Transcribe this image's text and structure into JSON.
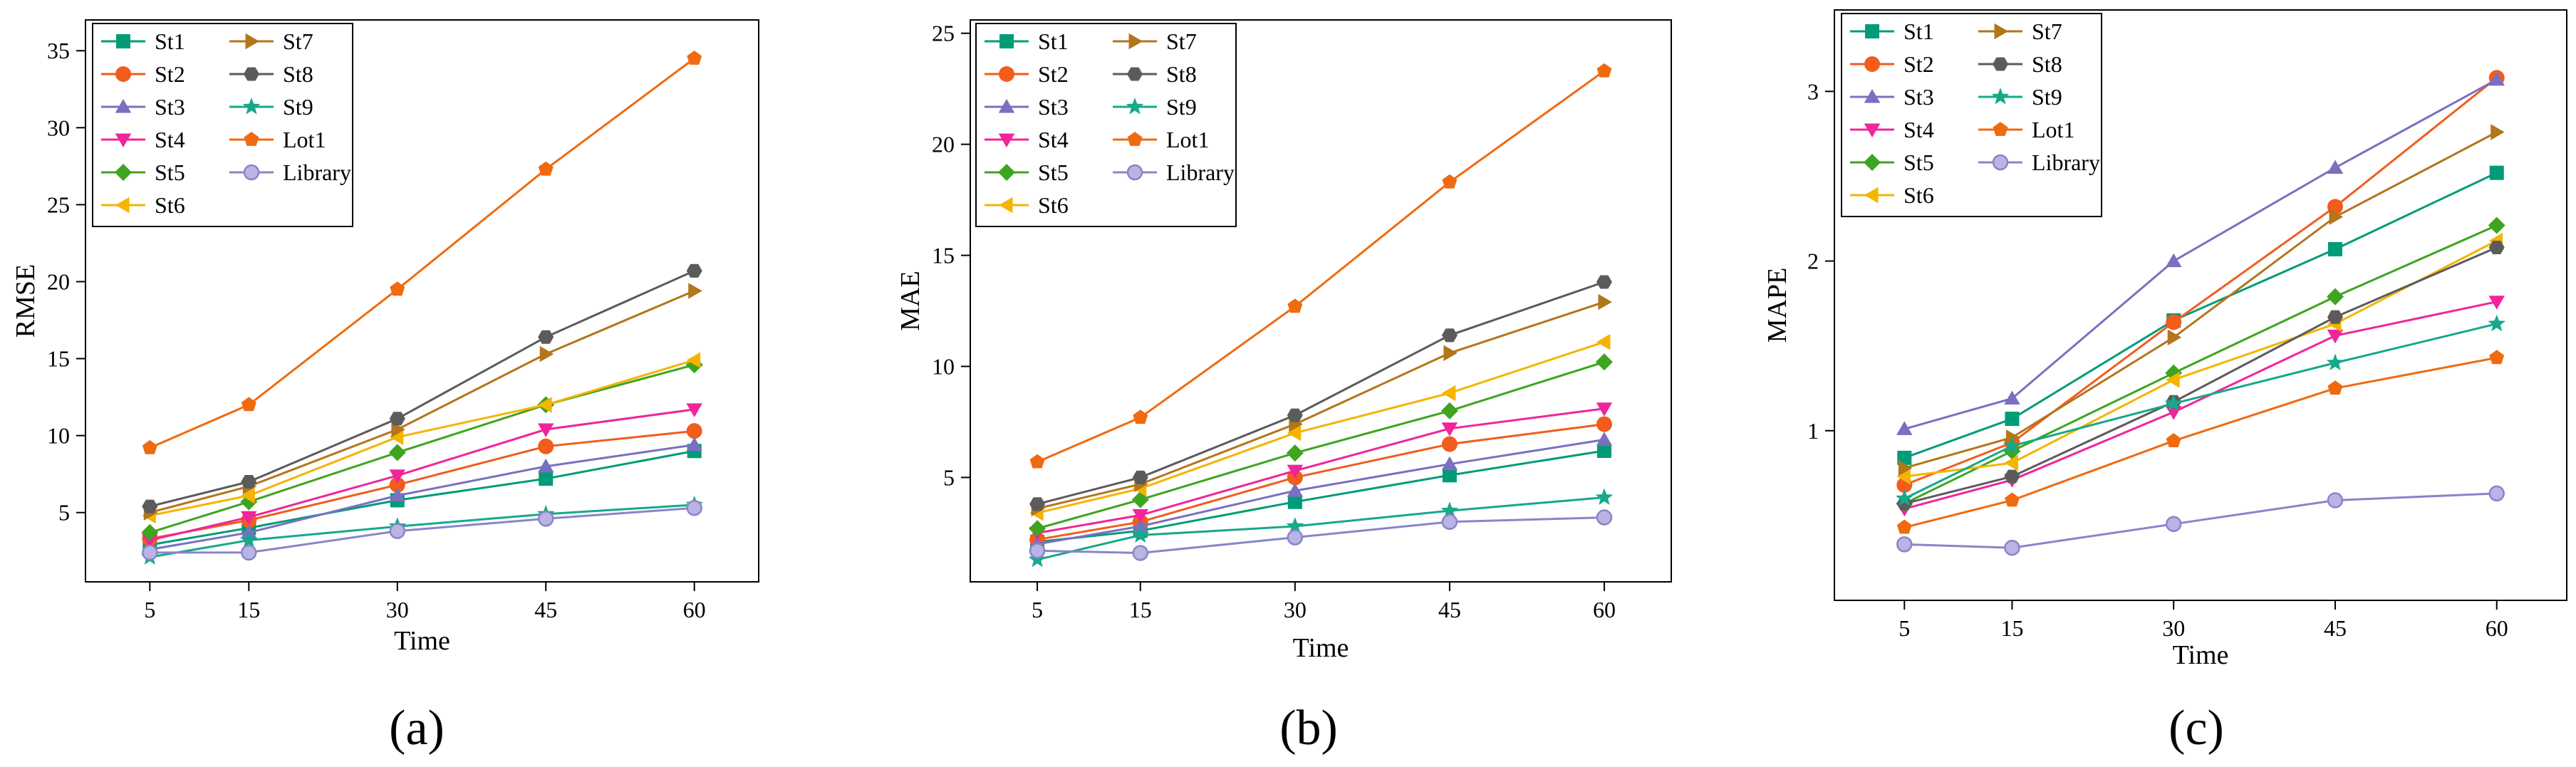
{
  "legend_entries": [
    "St1",
    "St2",
    "St3",
    "St4",
    "St5",
    "St6",
    "St7",
    "St8",
    "St9",
    "Lot1",
    "Library"
  ],
  "series_styles": [
    {
      "name": "St1",
      "color": "#009B77",
      "marker": "square"
    },
    {
      "name": "St2",
      "color": "#F25C1D",
      "marker": "circle"
    },
    {
      "name": "St3",
      "color": "#7A70C0",
      "marker": "triangle-up"
    },
    {
      "name": "St4",
      "color": "#F0259A",
      "marker": "triangle-down"
    },
    {
      "name": "St5",
      "color": "#3FA41F",
      "marker": "diamond"
    },
    {
      "name": "St6",
      "color": "#F5B400",
      "marker": "triangle-left"
    },
    {
      "name": "St7",
      "color": "#B2761B",
      "marker": "triangle-right"
    },
    {
      "name": "St8",
      "color": "#5B5B5B",
      "marker": "hexagon"
    },
    {
      "name": "St9",
      "color": "#17A88A",
      "marker": "star"
    },
    {
      "name": "Lot1",
      "color": "#F06A0F",
      "marker": "pentagon"
    },
    {
      "name": "Library",
      "color": "#8A84CA",
      "marker": "open-circle"
    }
  ],
  "chart_data": [
    {
      "type": "line",
      "caption": "(a)",
      "xlabel": "Time",
      "ylabel": "RMSE",
      "x": [
        5,
        15,
        30,
        45,
        60
      ],
      "x_ticks": [
        5,
        15,
        30,
        45,
        60
      ],
      "xlim": [
        -1.5,
        66.5
      ],
      "y_ticks": [
        5,
        10,
        15,
        20,
        25,
        30,
        35
      ],
      "ylim": [
        0.5,
        37
      ],
      "series": [
        {
          "name": "St1",
          "values": [
            2.9,
            4.0,
            5.8,
            7.2,
            9.0
          ]
        },
        {
          "name": "St2",
          "values": [
            3.3,
            4.5,
            6.8,
            9.3,
            10.3
          ]
        },
        {
          "name": "St3",
          "values": [
            2.6,
            3.7,
            6.1,
            8.0,
            9.4
          ]
        },
        {
          "name": "St4",
          "values": [
            3.2,
            4.7,
            7.4,
            10.4,
            11.7
          ]
        },
        {
          "name": "St5",
          "values": [
            3.7,
            5.7,
            8.9,
            12.0,
            14.6
          ]
        },
        {
          "name": "St6",
          "values": [
            4.8,
            6.1,
            9.9,
            12.0,
            14.9
          ]
        },
        {
          "name": "St7",
          "values": [
            5.0,
            6.7,
            10.4,
            15.3,
            19.4
          ]
        },
        {
          "name": "St8",
          "values": [
            5.4,
            7.0,
            11.1,
            16.4,
            20.7
          ]
        },
        {
          "name": "St9",
          "values": [
            2.1,
            3.2,
            4.1,
            4.9,
            5.5
          ]
        },
        {
          "name": "Lot1",
          "values": [
            9.2,
            12.0,
            19.5,
            27.3,
            34.5
          ]
        },
        {
          "name": "Library",
          "values": [
            2.4,
            2.4,
            3.8,
            4.6,
            5.3
          ]
        }
      ]
    },
    {
      "type": "line",
      "caption": "(b)",
      "xlabel": "Time",
      "ylabel": "MAE",
      "x": [
        5,
        15,
        30,
        45,
        60
      ],
      "x_ticks": [
        5,
        15,
        30,
        45,
        60
      ],
      "xlim": [
        -1.5,
        66.5
      ],
      "y_ticks": [
        5,
        10,
        15,
        20,
        25
      ],
      "ylim": [
        0.3,
        25.6
      ],
      "series": [
        {
          "name": "St1",
          "values": [
            2.1,
            2.6,
            3.9,
            5.1,
            6.2
          ]
        },
        {
          "name": "St2",
          "values": [
            2.2,
            3.0,
            5.0,
            6.5,
            7.4
          ]
        },
        {
          "name": "St3",
          "values": [
            2.0,
            2.8,
            4.4,
            5.6,
            6.7
          ]
        },
        {
          "name": "St4",
          "values": [
            2.5,
            3.3,
            5.3,
            7.2,
            8.1
          ]
        },
        {
          "name": "St5",
          "values": [
            2.7,
            4.0,
            6.1,
            8.0,
            10.2
          ]
        },
        {
          "name": "St6",
          "values": [
            3.4,
            4.5,
            7.0,
            8.8,
            11.1
          ]
        },
        {
          "name": "St7",
          "values": [
            3.6,
            4.7,
            7.4,
            10.6,
            12.9
          ]
        },
        {
          "name": "St8",
          "values": [
            3.8,
            5.0,
            7.8,
            11.4,
            13.8
          ]
        },
        {
          "name": "St9",
          "values": [
            1.3,
            2.4,
            2.8,
            3.5,
            4.1
          ]
        },
        {
          "name": "Lot1",
          "values": [
            5.7,
            7.7,
            12.7,
            18.3,
            23.3
          ]
        },
        {
          "name": "Library",
          "values": [
            1.7,
            1.6,
            2.3,
            3.0,
            3.2
          ]
        }
      ]
    },
    {
      "type": "line",
      "caption": "(c)",
      "xlabel": "Time",
      "ylabel": "MAPE",
      "x": [
        5,
        15,
        30,
        45,
        60
      ],
      "x_ticks": [
        5,
        15,
        30,
        45,
        60
      ],
      "xlim": [
        -1.5,
        66.5
      ],
      "y_ticks": [
        1,
        2,
        3
      ],
      "ylim": [
        0.0,
        3.48
      ],
      "series": [
        {
          "name": "St1",
          "values": [
            0.84,
            1.07,
            1.65,
            2.07,
            2.52
          ]
        },
        {
          "name": "St2",
          "values": [
            0.68,
            0.93,
            1.64,
            2.32,
            3.08
          ]
        },
        {
          "name": "St3",
          "values": [
            1.01,
            1.19,
            2.0,
            2.55,
            3.07
          ]
        },
        {
          "name": "St4",
          "values": [
            0.54,
            0.71,
            1.11,
            1.56,
            1.76
          ]
        },
        {
          "name": "St5",
          "values": [
            0.57,
            0.88,
            1.34,
            1.79,
            2.21
          ]
        },
        {
          "name": "St6",
          "values": [
            0.73,
            0.81,
            1.3,
            1.63,
            2.12
          ]
        },
        {
          "name": "St7",
          "values": [
            0.78,
            0.96,
            1.55,
            2.26,
            2.76
          ]
        },
        {
          "name": "St8",
          "values": [
            0.57,
            0.73,
            1.17,
            1.67,
            2.08
          ]
        },
        {
          "name": "St9",
          "values": [
            0.6,
            0.91,
            1.16,
            1.4,
            1.63
          ]
        },
        {
          "name": "Lot1",
          "values": [
            0.43,
            0.59,
            0.94,
            1.25,
            1.43
          ]
        },
        {
          "name": "Library",
          "values": [
            0.33,
            0.31,
            0.45,
            0.59,
            0.63
          ]
        }
      ]
    }
  ]
}
